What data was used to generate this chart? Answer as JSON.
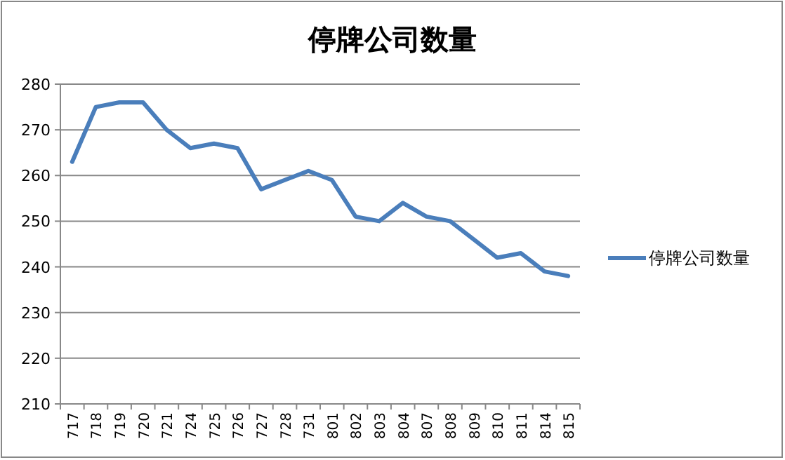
{
  "chart_data": {
    "type": "line",
    "title": "停牌公司数量",
    "categories": [
      "717",
      "718",
      "719",
      "720",
      "721",
      "724",
      "725",
      "726",
      "727",
      "728",
      "731",
      "801",
      "802",
      "803",
      "804",
      "807",
      "808",
      "809",
      "810",
      "811",
      "814",
      "815"
    ],
    "series": [
      {
        "name": "停牌公司数量",
        "color": "#4a7ebb",
        "values": [
          263,
          275,
          276,
          276,
          270,
          266,
          267,
          266,
          257,
          259,
          261,
          259,
          251,
          250,
          254,
          251,
          250,
          246,
          242,
          243,
          239,
          238
        ]
      }
    ],
    "ylim": [
      210,
      280
    ],
    "yticks": [
      210,
      220,
      230,
      240,
      250,
      260,
      270,
      280
    ],
    "grid": "y",
    "legend": "right",
    "marker": "none",
    "line_style": "solid"
  }
}
